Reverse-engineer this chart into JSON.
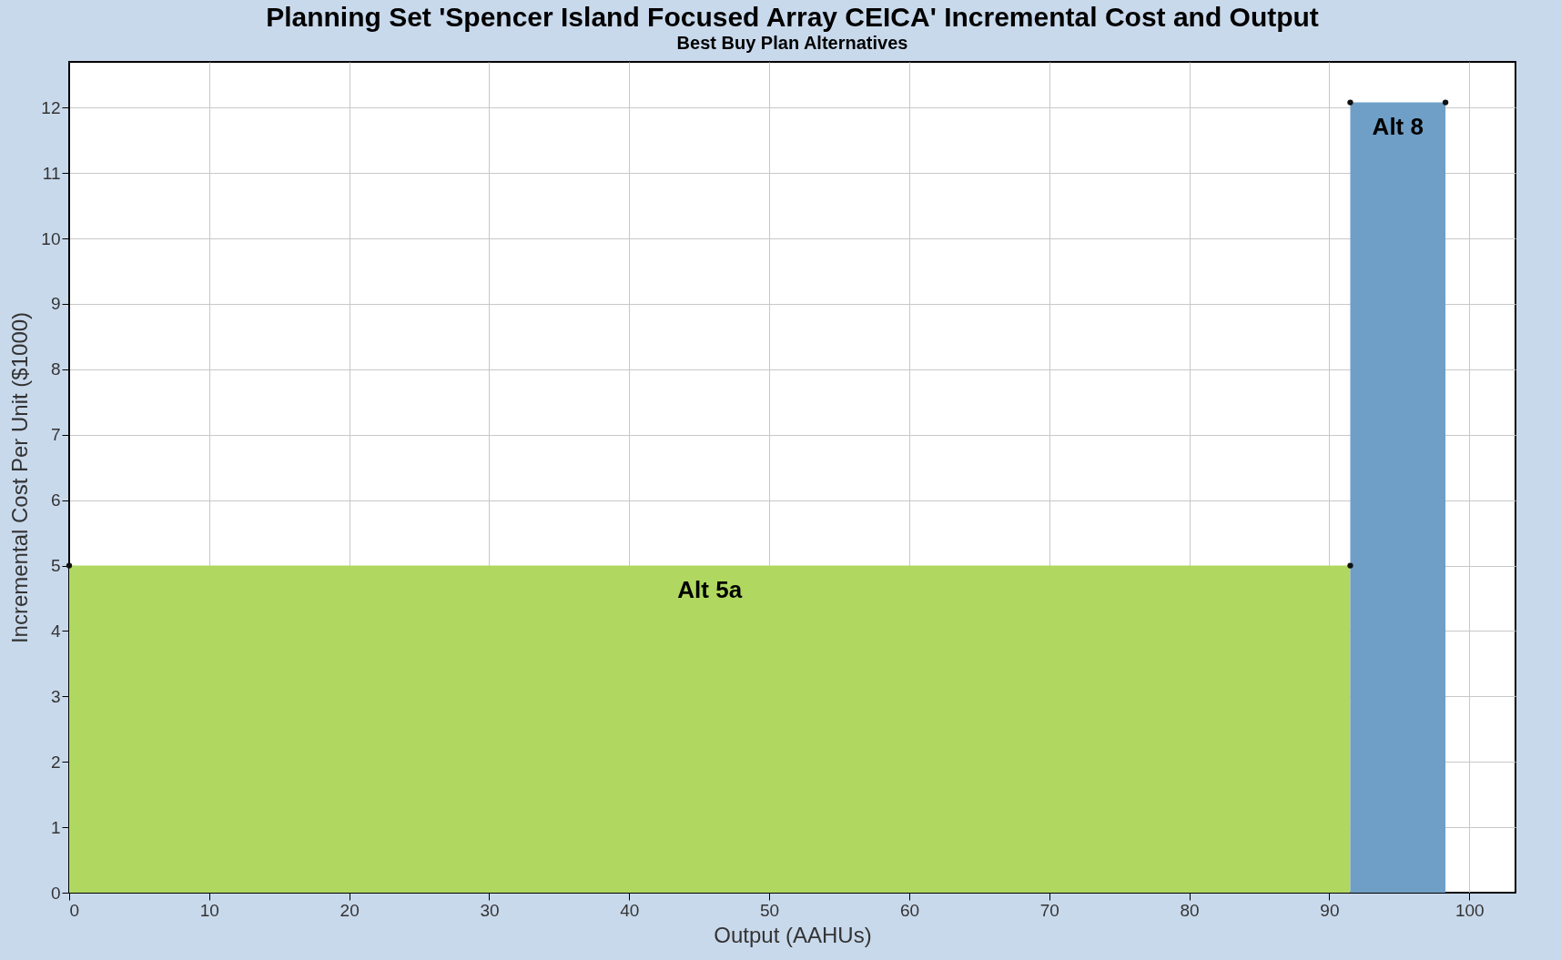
{
  "chart_data": {
    "type": "area",
    "title": "Planning Set 'Spencer Island Focused Array CEICA' Incremental Cost and Output",
    "subtitle": "Best Buy Plan Alternatives",
    "xlabel": "Output (AAHUs)",
    "ylabel": "Incremental Cost Per Unit ($1000)",
    "series": [
      {
        "name": "Alt 5a",
        "color": "#b0d860",
        "x": [
          0,
          91.5
        ],
        "values": [
          5,
          5
        ]
      },
      {
        "name": "Alt 8",
        "color": "#6f9fc6",
        "x": [
          91.5,
          98.3
        ],
        "values": [
          12.08,
          12.08
        ]
      }
    ],
    "xlim": [
      0,
      103.3
    ],
    "xticks": [
      0,
      10,
      20,
      30,
      40,
      50,
      60,
      70,
      80,
      90,
      100
    ],
    "ylim": [
      0,
      12.7
    ],
    "yticks": [
      0,
      1,
      2,
      3,
      4,
      5,
      6,
      7,
      8,
      9,
      10,
      11,
      12
    ],
    "grid": true,
    "marker": "circle"
  }
}
